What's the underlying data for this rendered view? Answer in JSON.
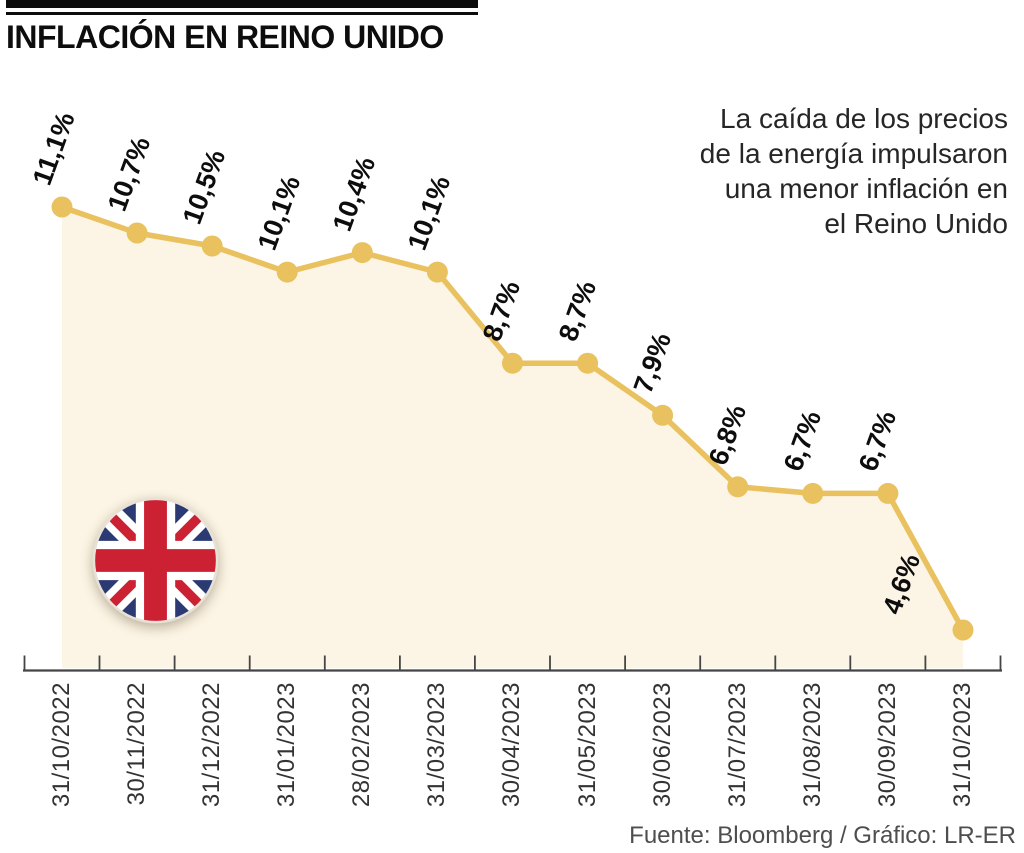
{
  "header": {
    "title": "INFLACIÓN EN REINO UNIDO"
  },
  "annotation": {
    "text": "La caída de los precios\nde la energía impulsaron\nuna menor inflación en\nel Reino Unido"
  },
  "footer": {
    "credit": "Fuente: Bloomberg / Gráfico: LR-ER"
  },
  "flag": {
    "icon_name": "uk-flag-icon",
    "colors": {
      "blue": "#2c3a74",
      "red": "#cc2033",
      "white": "#ffffff",
      "rim": "#e8e2d6"
    }
  },
  "chart_data": {
    "type": "area",
    "title": "INFLACIÓN EN REINO UNIDO",
    "xlabel": "",
    "ylabel": "",
    "x": [
      "31/10/2022",
      "30/11/2022",
      "31/12/2022",
      "31/01/2023",
      "28/02/2023",
      "31/03/2023",
      "30/04/2023",
      "31/05/2023",
      "30/06/2023",
      "31/07/2023",
      "31/08/2023",
      "30/09/2023",
      "31/10/2023"
    ],
    "values": [
      11.1,
      10.7,
      10.5,
      10.1,
      10.4,
      10.1,
      8.7,
      8.7,
      7.9,
      6.8,
      6.7,
      6.7,
      4.6
    ],
    "point_labels": [
      "11,1%",
      "10,7%",
      "10,5%",
      "10,1%",
      "10,4%",
      "10,1%",
      "8,7%",
      "8,7%",
      "7,9%",
      "6,8%",
      "6,7%",
      "6,7%",
      "4,6%"
    ],
    "ylim": [
      3.95,
      11.5
    ],
    "grid": false,
    "legend": null,
    "colors": {
      "line": "#e9c25f",
      "marker": "#e9c25f",
      "fill": "#fcf4e4",
      "axis": "#454545",
      "value_label": "#0d0d0d",
      "tick_label": "#333333"
    }
  }
}
